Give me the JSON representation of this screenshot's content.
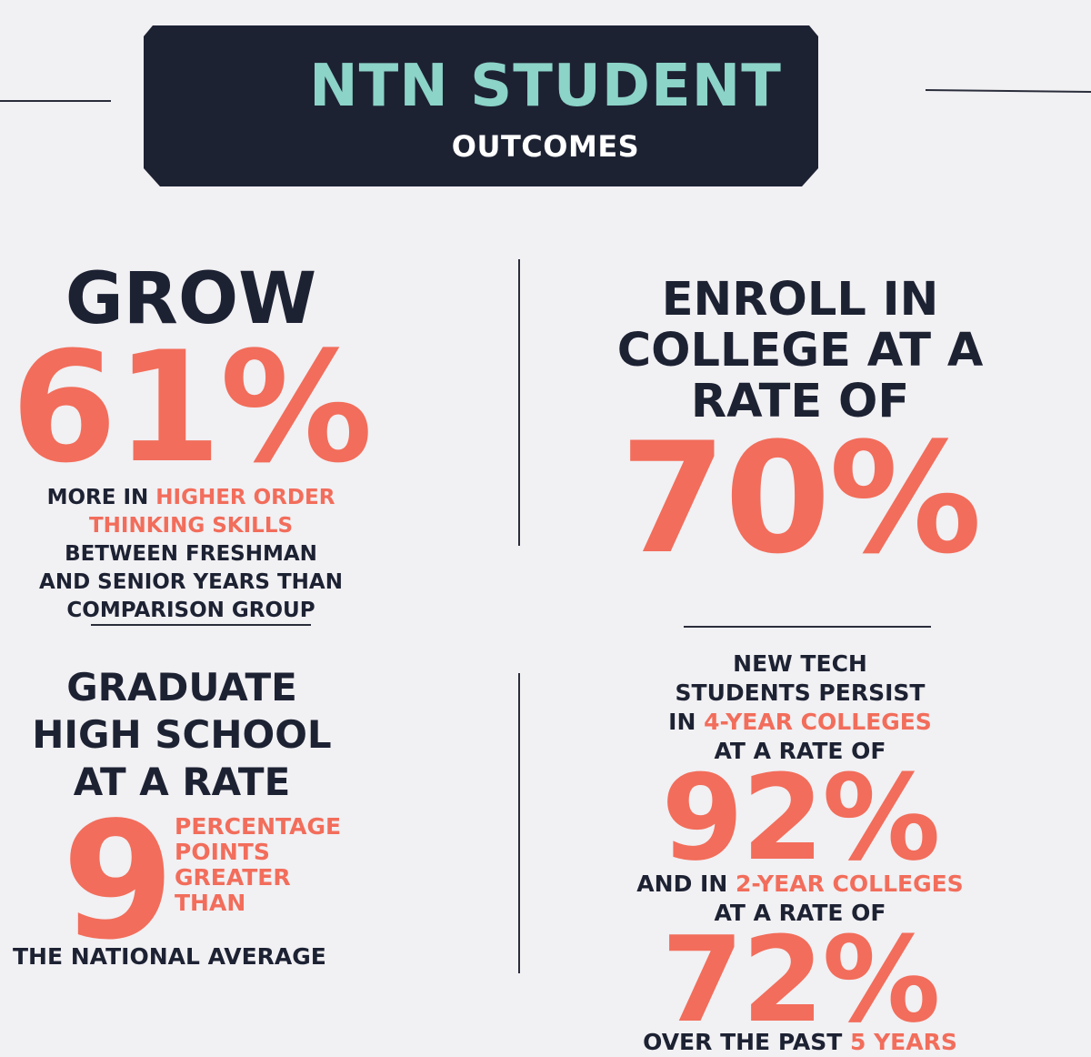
{
  "banner": {
    "title": "NTN STUDENT",
    "subtitle": "OUTCOMES"
  },
  "grow": {
    "heading": "GROW",
    "value": "61%",
    "caption_line1_a": "MORE IN ",
    "caption_line1_b": "HIGHER ORDER",
    "caption_line2": "THINKING SKILLS",
    "caption_line3": "BETWEEN FRESHMAN",
    "caption_line4": "AND SENIOR YEARS THAN",
    "caption_line5": "COMPARISON GROUP"
  },
  "enroll": {
    "line1": "ENROLL IN",
    "line2": "COLLEGE AT A",
    "line3": "RATE OF",
    "value": "70%"
  },
  "graduate": {
    "line1": "GRADUATE",
    "line2": "HIGH SCHOOL",
    "line3": "AT A RATE",
    "value": "9",
    "side1": "PERCENTAGE",
    "side2": "POINTS",
    "side3": "GREATER",
    "side4": "THAN",
    "footer": "THE NATIONAL AVERAGE"
  },
  "persist": {
    "line1": "NEW TECH",
    "line2": "STUDENTS PERSIST",
    "line3_a": "IN ",
    "line3_b": "4-YEAR COLLEGES",
    "line4": "AT A RATE OF",
    "value1": "92%",
    "line5_a": "AND IN ",
    "line5_b": "2-YEAR COLLEGES",
    "line6": "AT A RATE OF",
    "value2": "72%",
    "line7_a": "OVER THE PAST ",
    "line7_b": "5 YEARS"
  },
  "colors": {
    "navy": "#1d2233",
    "coral": "#f26d5b",
    "mint": "#8cd3c8",
    "background": "#f1f0f3"
  }
}
